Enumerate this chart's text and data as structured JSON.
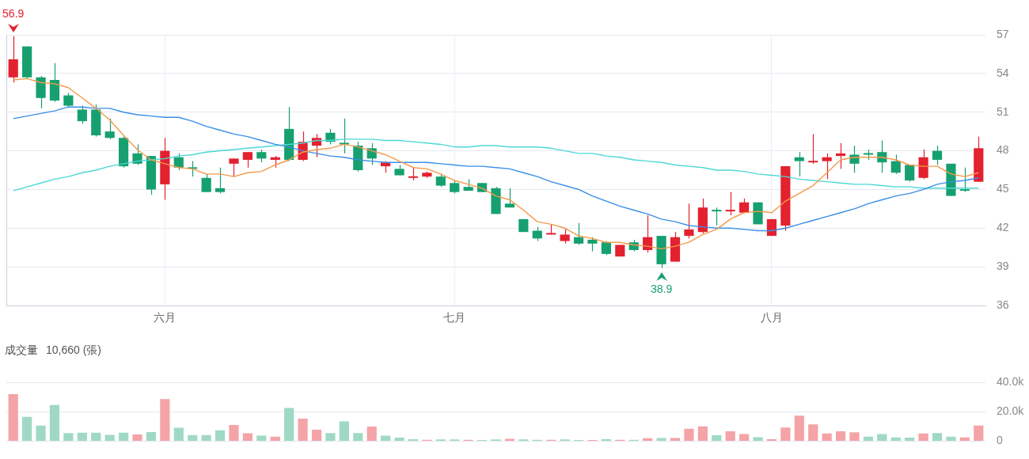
{
  "chart_data": [
    {
      "type": "candlestick",
      "categories": [
        null,
        null,
        null,
        null,
        null,
        null,
        null,
        null,
        null,
        null,
        null,
        "六月",
        null,
        null,
        null,
        null,
        null,
        null,
        null,
        null,
        null,
        null,
        null,
        null,
        null,
        null,
        null,
        null,
        null,
        null,
        null,
        null,
        "七月",
        null,
        null,
        null,
        null,
        null,
        null,
        null,
        null,
        null,
        null,
        null,
        null,
        null,
        null,
        null,
        null,
        null,
        null,
        null,
        null,
        null,
        null,
        "八月",
        null,
        null,
        null,
        null,
        null,
        null,
        null,
        null,
        null,
        null,
        null,
        null,
        null,
        null,
        null
      ],
      "ohlc": [
        [
          53.7,
          56.9,
          53.3,
          55.1
        ],
        [
          56.1,
          56.1,
          53.6,
          53.7
        ],
        [
          53.7,
          53.8,
          51.3,
          52.1
        ],
        [
          53.5,
          54.8,
          51.8,
          51.9
        ],
        [
          52.3,
          52.5,
          51.4,
          51.5
        ],
        [
          51.2,
          51.5,
          50.1,
          50.3
        ],
        [
          51.2,
          51.6,
          49.1,
          49.2
        ],
        [
          49.5,
          50.5,
          48.9,
          49.0
        ],
        [
          49.0,
          49.1,
          46.7,
          46.8
        ],
        [
          47.8,
          48.5,
          46.9,
          47.0
        ],
        [
          47.6,
          47.6,
          44.6,
          45.0
        ],
        [
          45.4,
          49.0,
          44.2,
          48.0
        ],
        [
          47.5,
          47.8,
          46.5,
          46.7
        ],
        [
          46.7,
          47.2,
          46.0,
          46.6
        ],
        [
          45.9,
          46.2,
          44.8,
          44.8
        ],
        [
          45.1,
          46.7,
          44.7,
          44.8
        ],
        [
          47.0,
          47.4,
          46.0,
          47.4
        ],
        [
          47.3,
          47.9,
          46.7,
          47.9
        ],
        [
          47.9,
          48.1,
          47.1,
          47.4
        ],
        [
          47.3,
          47.6,
          46.7,
          47.5
        ],
        [
          49.7,
          51.4,
          47.2,
          47.3
        ],
        [
          47.3,
          49.5,
          47.2,
          48.7
        ],
        [
          48.4,
          49.3,
          47.5,
          49.0
        ],
        [
          49.4,
          49.7,
          48.5,
          48.7
        ],
        [
          48.6,
          50.5,
          47.8,
          48.5
        ],
        [
          48.4,
          48.7,
          46.4,
          46.5
        ],
        [
          48.2,
          48.6,
          46.9,
          47.4
        ],
        [
          46.8,
          47.2,
          46.3,
          47.1
        ],
        [
          46.6,
          46.9,
          46.1,
          46.1
        ],
        [
          45.9,
          46.7,
          45.7,
          46.0
        ],
        [
          46.0,
          46.4,
          45.9,
          46.3
        ],
        [
          46.0,
          46.2,
          45.2,
          45.3
        ],
        [
          45.5,
          45.7,
          44.7,
          44.8
        ],
        [
          45.2,
          45.8,
          44.9,
          44.9
        ],
        [
          45.5,
          45.5,
          44.8,
          44.8
        ],
        [
          45.1,
          45.2,
          43.1,
          43.1
        ],
        [
          43.9,
          45.1,
          43.6,
          43.6
        ],
        [
          42.7,
          42.7,
          41.7,
          41.7
        ],
        [
          41.8,
          42.1,
          41.0,
          41.2
        ],
        [
          41.5,
          42.3,
          41.5,
          41.6
        ],
        [
          41.0,
          42.0,
          40.8,
          41.5
        ],
        [
          41.3,
          42.4,
          40.7,
          40.8
        ],
        [
          41.1,
          41.3,
          40.2,
          40.8
        ],
        [
          40.9,
          41.0,
          39.9,
          40.0
        ],
        [
          39.8,
          40.7,
          39.8,
          40.7
        ],
        [
          40.9,
          41.1,
          40.2,
          40.3
        ],
        [
          40.3,
          43.0,
          40.1,
          41.3
        ],
        [
          41.4,
          41.4,
          38.9,
          39.2
        ],
        [
          39.4,
          41.7,
          39.4,
          41.3
        ],
        [
          41.4,
          43.9,
          41.2,
          41.9
        ],
        [
          41.7,
          44.3,
          41.6,
          43.6
        ],
        [
          43.4,
          43.6,
          42.2,
          43.3
        ],
        [
          43.3,
          44.8,
          43.0,
          43.4
        ],
        [
          43.2,
          44.3,
          43.2,
          44.0
        ],
        [
          44.0,
          44.0,
          42.3,
          42.3
        ],
        [
          41.4,
          42.7,
          41.4,
          42.7
        ],
        [
          42.2,
          46.8,
          41.8,
          46.8
        ],
        [
          47.5,
          47.9,
          46.0,
          47.2
        ],
        [
          47.1,
          49.3,
          47.0,
          47.2
        ],
        [
          47.2,
          47.8,
          45.8,
          47.5
        ],
        [
          47.6,
          48.6,
          46.6,
          47.8
        ],
        [
          47.7,
          48.4,
          46.3,
          47.0
        ],
        [
          47.8,
          48.1,
          47.3,
          47.7
        ],
        [
          47.9,
          48.8,
          46.3,
          47.1
        ],
        [
          47.2,
          47.7,
          46.2,
          46.3
        ],
        [
          46.9,
          46.9,
          45.6,
          45.7
        ],
        [
          45.9,
          48.1,
          45.8,
          47.5
        ],
        [
          48.0,
          48.4,
          46.9,
          47.3
        ],
        [
          47.0,
          47.0,
          44.5,
          44.5
        ],
        [
          45.0,
          46.7,
          44.8,
          44.9
        ],
        [
          45.6,
          49.1,
          45.6,
          48.2
        ]
      ],
      "colors": [
        "#e3212f",
        "#16a06f",
        "#16a06f",
        "#16a06f",
        "#16a06f",
        "#16a06f",
        "#16a06f",
        "#16a06f",
        "#16a06f",
        "#16a06f",
        "#16a06f",
        "#e3212f",
        "#16a06f",
        "#16a06f",
        "#16a06f",
        "#16a06f",
        "#e3212f",
        "#e3212f",
        "#16a06f",
        "#e3212f",
        "#16a06f",
        "#e3212f",
        "#e3212f",
        "#16a06f",
        "#16a06f",
        "#16a06f",
        "#16a06f",
        "#e3212f",
        "#16a06f",
        "#e3212f",
        "#e3212f",
        "#16a06f",
        "#16a06f",
        "#16a06f",
        "#16a06f",
        "#16a06f",
        "#16a06f",
        "#16a06f",
        "#16a06f",
        "#e3212f",
        "#e3212f",
        "#16a06f",
        "#16a06f",
        "#16a06f",
        "#e3212f",
        "#16a06f",
        "#e3212f",
        "#16a06f",
        "#e3212f",
        "#e3212f",
        "#e3212f",
        "#16a06f",
        "#e3212f",
        "#e3212f",
        "#16a06f",
        "#e3212f",
        "#e3212f",
        "#16a06f",
        "#e3212f",
        "#e3212f",
        "#e3212f",
        "#16a06f",
        "#16a06f",
        "#16a06f",
        "#16a06f",
        "#16a06f",
        "#e3212f",
        "#16a06f",
        "#16a06f",
        "#16a06f",
        "#e3212f"
      ],
      "series": [
        {
          "type": "line",
          "color": "#f39a4a",
          "values": [
            53.5,
            53.6,
            53.3,
            53.2,
            52.9,
            52.1,
            51.3,
            50.4,
            49.2,
            48.1,
            47.3,
            47.0,
            46.7,
            46.6,
            46.2,
            46.2,
            46.0,
            46.3,
            46.4,
            46.9,
            47.3,
            47.9,
            48.1,
            48.2,
            48.5,
            48.3,
            48.0,
            47.7,
            47.2,
            46.7,
            46.6,
            46.2,
            45.7,
            45.4,
            45.1,
            44.5,
            44.2,
            43.4,
            42.5,
            42.3,
            42.0,
            41.4,
            41.2,
            40.9,
            40.9,
            40.7,
            40.6,
            40.4,
            40.6,
            40.9,
            41.5,
            41.9,
            42.7,
            43.2,
            43.3,
            43.2,
            44.1,
            44.7,
            45.3,
            46.3,
            47.3,
            47.5,
            47.5,
            47.5,
            47.3,
            46.9,
            46.8,
            46.8,
            46.2,
            46.0,
            46.3
          ]
        },
        {
          "type": "line",
          "color": "#3a8ee6",
          "values": [
            50.5,
            50.7,
            50.9,
            51.1,
            51.4,
            51.4,
            51.3,
            51.3,
            51.0,
            50.8,
            50.7,
            50.6,
            50.6,
            50.3,
            49.9,
            49.6,
            49.3,
            49.1,
            48.8,
            48.5,
            48.3,
            48.0,
            47.8,
            47.6,
            47.5,
            47.3,
            47.2,
            47.1,
            47.1,
            47.1,
            47.1,
            47.0,
            46.9,
            46.8,
            46.8,
            46.7,
            46.6,
            46.3,
            46.0,
            45.6,
            45.3,
            45.0,
            44.5,
            44.1,
            43.7,
            43.4,
            43.1,
            42.7,
            42.5,
            42.2,
            42.1,
            42.0,
            42.0,
            41.9,
            41.8,
            41.8,
            42.0,
            42.3,
            42.6,
            42.9,
            43.2,
            43.5,
            43.9,
            44.2,
            44.5,
            44.7,
            45.0,
            45.4,
            45.6,
            45.7,
            45.9
          ]
        },
        {
          "type": "line",
          "color": "#4cd8d6",
          "values": [
            44.9,
            45.2,
            45.5,
            45.8,
            46.0,
            46.3,
            46.5,
            46.8,
            47.0,
            47.2,
            47.3,
            47.4,
            47.6,
            47.7,
            47.9,
            48.0,
            48.1,
            48.2,
            48.3,
            48.4,
            48.5,
            48.6,
            48.8,
            48.8,
            48.9,
            48.9,
            48.9,
            48.8,
            48.8,
            48.7,
            48.6,
            48.5,
            48.3,
            48.3,
            48.4,
            48.4,
            48.3,
            48.3,
            48.3,
            48.2,
            48.0,
            47.8,
            47.8,
            47.6,
            47.5,
            47.3,
            47.2,
            47.1,
            46.9,
            46.8,
            46.7,
            46.5,
            46.5,
            46.4,
            46.2,
            46.1,
            46.0,
            45.8,
            45.7,
            45.6,
            45.5,
            45.4,
            45.4,
            45.3,
            45.2,
            45.2,
            45.1,
            45.1,
            45.1,
            45.1,
            45.1
          ]
        }
      ],
      "ylim": [
        36,
        57
      ],
      "yticks": [
        36,
        39,
        42,
        45,
        48,
        51,
        54,
        57
      ],
      "grid": true,
      "annotations": [
        {
          "text": "56.9",
          "y": 56.9
        },
        {
          "text": "38.9",
          "y": 38.9
        }
      ]
    },
    {
      "type": "bar",
      "title": "成交量",
      "subtitle": "10,660 (張)",
      "categories": [
        null,
        null,
        null,
        null,
        null,
        null,
        null,
        null,
        null,
        null,
        null,
        null,
        null,
        null,
        null,
        null,
        null,
        null,
        null,
        null,
        null,
        null,
        null,
        null,
        null,
        null,
        null,
        null,
        null,
        null,
        null,
        null,
        null,
        null,
        null,
        null,
        null,
        null,
        null,
        null,
        null,
        null,
        null,
        null,
        null,
        null,
        null,
        null,
        null,
        null,
        null,
        null,
        null,
        null,
        null,
        null,
        null,
        null,
        null,
        null,
        null,
        null,
        null,
        null,
        null,
        null,
        null,
        null,
        null,
        null,
        null
      ],
      "values": [
        32000,
        16600,
        10600,
        24600,
        5600,
        5800,
        5800,
        4400,
        5800,
        4600,
        6200,
        28600,
        9200,
        4200,
        4200,
        7400,
        11000,
        5400,
        3800,
        3200,
        22600,
        15400,
        7800,
        5600,
        13400,
        5600,
        10000,
        3800,
        2400,
        1400,
        1000,
        1200,
        1200,
        1000,
        800,
        1200,
        1600,
        1200,
        1000,
        1000,
        1200,
        800,
        800,
        1400,
        1000,
        1000,
        2000,
        2200,
        2200,
        8500,
        10100,
        4100,
        6700,
        4900,
        2800,
        1400,
        9300,
        17400,
        11400,
        5300,
        6700,
        6100,
        3200,
        4900,
        2600,
        2400,
        5300,
        5500,
        3200,
        2600,
        10660
      ],
      "colors": [
        "#f4a3a7",
        "#9fd9c4",
        "#9fd9c4",
        "#9fd9c4",
        "#9fd9c4",
        "#9fd9c4",
        "#9fd9c4",
        "#9fd9c4",
        "#9fd9c4",
        "#f4a3a7",
        "#9fd9c4",
        "#f4a3a7",
        "#9fd9c4",
        "#9fd9c4",
        "#9fd9c4",
        "#9fd9c4",
        "#f4a3a7",
        "#f4a3a7",
        "#9fd9c4",
        "#f4a3a7",
        "#9fd9c4",
        "#f4a3a7",
        "#f4a3a7",
        "#9fd9c4",
        "#9fd9c4",
        "#9fd9c4",
        "#f4a3a7",
        "#9fd9c4",
        "#9fd9c4",
        "#9fd9c4",
        "#f4a3a7",
        "#9fd9c4",
        "#9fd9c4",
        "#f4a3a7",
        "#9fd9c4",
        "#9fd9c4",
        "#f4a3a7",
        "#9fd9c4",
        "#9fd9c4",
        "#f4a3a7",
        "#9fd9c4",
        "#9fd9c4",
        "#f4a3a7",
        "#9fd9c4",
        "#f4a3a7",
        "#9fd9c4",
        "#f4a3a7",
        "#9fd9c4",
        "#f4a3a7",
        "#f4a3a7",
        "#f4a3a7",
        "#9fd9c4",
        "#f4a3a7",
        "#f4a3a7",
        "#9fd9c4",
        "#f4a3a7",
        "#f4a3a7",
        "#f4a3a7",
        "#f4a3a7",
        "#f4a3a7",
        "#f4a3a7",
        "#f4a3a7",
        "#9fd9c4",
        "#9fd9c4",
        "#9fd9c4",
        "#9fd9c4",
        "#f4a3a7",
        "#9fd9c4",
        "#9fd9c4",
        "#f4a3a7",
        "#f4a3a7"
      ],
      "ylim": [
        0,
        40000
      ],
      "yticks": [
        0,
        {
          "value": 20000,
          "label": "20.0k"
        },
        {
          "value": 40000,
          "label": "40.0k"
        }
      ],
      "grid": "y",
      "tick_labels": "y"
    }
  ]
}
